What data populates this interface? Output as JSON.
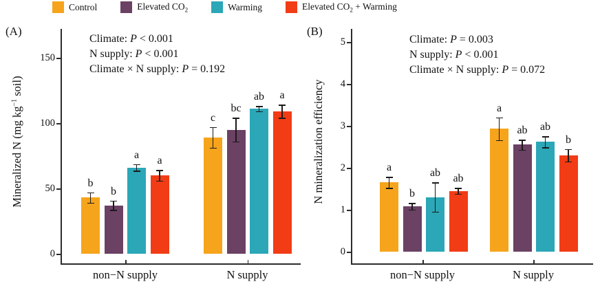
{
  "legend": {
    "items": [
      {
        "name": "control",
        "color": "#F6A41C",
        "segments": [
          {
            "t": "Control"
          }
        ]
      },
      {
        "name": "elevated-co2",
        "color": "#6B4164",
        "segments": [
          {
            "t": "Elevated CO"
          },
          {
            "t": "2",
            "sub": true
          }
        ]
      },
      {
        "name": "warming",
        "color": "#2BA7B7",
        "segments": [
          {
            "t": "Warming"
          }
        ]
      },
      {
        "name": "elevated-co2-warming",
        "color": "#F13C15",
        "segments": [
          {
            "t": "Elevated CO"
          },
          {
            "t": "2",
            "sub": true
          },
          {
            "t": " + Warming"
          }
        ]
      }
    ]
  },
  "chart_data": [
    {
      "type": "bar",
      "panel_label": "(A)",
      "ylabel_segments": [
        {
          "t": "Mineralized N (mg kg"
        },
        {
          "t": "−1",
          "sup": true
        },
        {
          "t": " soil)"
        }
      ],
      "ylim": [
        0,
        172
      ],
      "yticks": [
        0,
        50,
        100,
        150
      ],
      "grid": false,
      "categories": [
        "non−N supply",
        "N supply"
      ],
      "annotations": [
        "Climate: P < 0.001",
        "N supply: P < 0.001",
        "Climate × N supply: P = 0.192"
      ],
      "series": [
        {
          "name": "Control",
          "color": "#F6A41C",
          "values": [
            43,
            89
          ],
          "errors": [
            4,
            8
          ],
          "letters": [
            "b",
            "c"
          ]
        },
        {
          "name": "Elevated CO2",
          "color": "#6B4164",
          "values": [
            37,
            95
          ],
          "errors": [
            3.5,
            9
          ],
          "letters": [
            "b",
            "bc"
          ]
        },
        {
          "name": "Warming",
          "color": "#2BA7B7",
          "values": [
            66,
            111
          ],
          "errors": [
            2.5,
            2
          ],
          "letters": [
            "a",
            "ab"
          ]
        },
        {
          "name": "Elevated CO2 + Warming",
          "color": "#F13C15",
          "values": [
            60,
            109
          ],
          "errors": [
            4,
            5
          ],
          "letters": [
            "a",
            "a"
          ]
        }
      ]
    },
    {
      "type": "bar",
      "panel_label": "(B)",
      "ylabel_segments": [
        {
          "t": "N mineralization efficiency"
        }
      ],
      "ylim": [
        0,
        5.3
      ],
      "yticks": [
        0,
        1,
        2,
        3,
        4,
        5
      ],
      "grid": false,
      "categories": [
        "non−N supply",
        "N supply"
      ],
      "annotations": [
        "Climate: P = 0.003",
        "N supply: P < 0.001",
        "Climate × N supply: P = 0.072"
      ],
      "series": [
        {
          "name": "Control",
          "color": "#F6A41C",
          "values": [
            1.65,
            2.93
          ],
          "errors": [
            0.13,
            0.27
          ],
          "letters": [
            "a",
            "a"
          ]
        },
        {
          "name": "Elevated CO2",
          "color": "#6B4164",
          "values": [
            1.08,
            2.55
          ],
          "errors": [
            0.08,
            0.12
          ],
          "letters": [
            "b",
            "ab"
          ]
        },
        {
          "name": "Warming",
          "color": "#2BA7B7",
          "values": [
            1.3,
            2.62
          ],
          "errors": [
            0.35,
            0.13
          ],
          "letters": [
            "ab",
            "ab"
          ]
        },
        {
          "name": "Elevated CO2 + Warming",
          "color": "#F13C15",
          "values": [
            1.45,
            2.3
          ],
          "errors": [
            0.07,
            0.15
          ],
          "letters": [
            "ab",
            "b"
          ]
        }
      ]
    }
  ]
}
